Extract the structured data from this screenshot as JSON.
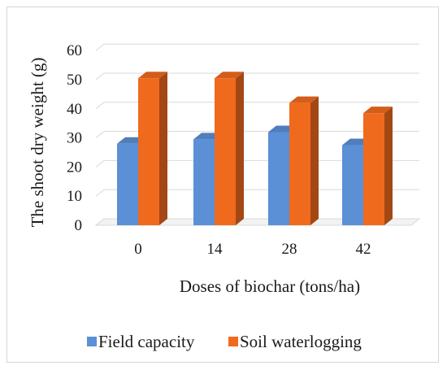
{
  "chart_data": {
    "type": "bar",
    "style": "3d-clustered-column",
    "title": "",
    "xlabel": "Doses of biochar (tons/ha)",
    "ylabel": "The shoot dry weight (g)",
    "categories": [
      "0",
      "14",
      "28",
      "42"
    ],
    "ylim": [
      0,
      60
    ],
    "yticks": [
      "0",
      "10",
      "20",
      "30",
      "40",
      "50",
      "60"
    ],
    "grid": true,
    "legend_position": "bottom",
    "series": [
      {
        "name": "Field capacity",
        "color": "#5b8fd6",
        "values": [
          28,
          29.5,
          32,
          27.5
        ]
      },
      {
        "name": "Soil waterlogging",
        "color": "#f06a1e",
        "values": [
          50.5,
          50.5,
          42,
          38.5
        ]
      }
    ]
  }
}
